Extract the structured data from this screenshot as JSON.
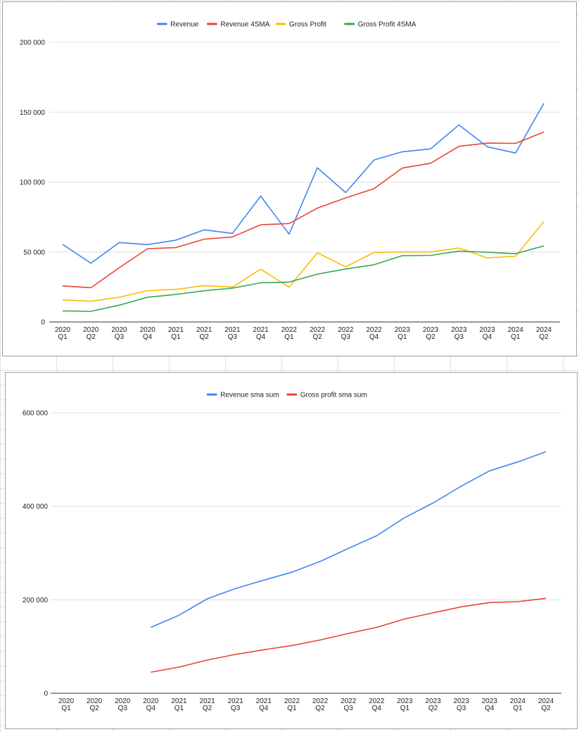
{
  "chart_data": [
    {
      "type": "line",
      "title": "",
      "xlabel": "",
      "ylabel": "",
      "categories": [
        [
          "2020",
          "Q1"
        ],
        [
          "2020",
          "Q2"
        ],
        [
          "2020",
          "Q3"
        ],
        [
          "2020",
          "Q4"
        ],
        [
          "2021",
          "Q1"
        ],
        [
          "2021",
          "Q2"
        ],
        [
          "2021",
          "Q3"
        ],
        [
          "2021",
          "Q4"
        ],
        [
          "2022",
          "Q1"
        ],
        [
          "2022",
          "Q2"
        ],
        [
          "2022",
          "Q3"
        ],
        [
          "2022",
          "Q4"
        ],
        [
          "2023",
          "Q1"
        ],
        [
          "2023",
          "Q2"
        ],
        [
          "2023",
          "Q3"
        ],
        [
          "2023",
          "Q4"
        ],
        [
          "2024",
          "Q1"
        ],
        [
          "2024",
          "Q2"
        ]
      ],
      "ylim": [
        0,
        200000
      ],
      "yticks": [
        0,
        50000,
        100000,
        150000,
        200000
      ],
      "ytick_labels": [
        "0",
        "50 000",
        "100 000",
        "150 000",
        "200 000"
      ],
      "grid": true,
      "legend": "top-center",
      "series": [
        {
          "name": "Revenue",
          "color": "#4285f4",
          "values": [
            55500,
            42000,
            56800,
            55300,
            58500,
            65900,
            63300,
            90000,
            62800,
            110300,
            92500,
            115800,
            121700,
            123800,
            140900,
            125300,
            120800,
            156300
          ]
        },
        {
          "name": "Revenue 4SMA",
          "color": "#ea4335",
          "values": [
            25800,
            24500,
            38800,
            52400,
            53200,
            59200,
            60800,
            69500,
            70400,
            81400,
            88700,
            95300,
            110000,
            113500,
            125600,
            127900,
            127700,
            135800
          ]
        },
        {
          "name": "Gross Profit",
          "color": "#fbbc04",
          "values": [
            15800,
            14800,
            17700,
            22300,
            23300,
            26000,
            24900,
            37800,
            24900,
            49400,
            39400,
            49700,
            50200,
            50100,
            52900,
            45800,
            47000,
            71800
          ]
        },
        {
          "name": "Gross Profit 4SMA",
          "color": "#34a853",
          "values": [
            7900,
            7600,
            12000,
            17700,
            19700,
            22300,
            24200,
            28000,
            28500,
            34200,
            37900,
            40900,
            47400,
            47600,
            50700,
            49800,
            48800,
            54400
          ]
        }
      ]
    },
    {
      "type": "line",
      "title": "",
      "xlabel": "",
      "ylabel": "",
      "categories": [
        [
          "2020",
          "Q1"
        ],
        [
          "2020",
          "Q2"
        ],
        [
          "2020",
          "Q3"
        ],
        [
          "2020",
          "Q4"
        ],
        [
          "2021",
          "Q1"
        ],
        [
          "2021",
          "Q2"
        ],
        [
          "2021",
          "Q3"
        ],
        [
          "2021",
          "Q4"
        ],
        [
          "2022",
          "Q1"
        ],
        [
          "2022",
          "Q2"
        ],
        [
          "2022",
          "Q3"
        ],
        [
          "2022",
          "Q4"
        ],
        [
          "2023",
          "Q1"
        ],
        [
          "2023",
          "Q2"
        ],
        [
          "2023",
          "Q3"
        ],
        [
          "2023",
          "Q4"
        ],
        [
          "2024",
          "Q1"
        ],
        [
          "2024",
          "Q2"
        ]
      ],
      "ylim": [
        0,
        600000
      ],
      "yticks": [
        0,
        200000,
        400000,
        600000
      ],
      "ytick_labels": [
        "0",
        "200 000",
        "400 000",
        "600 000"
      ],
      "grid": true,
      "legend": "top-center",
      "series": [
        {
          "name": "Revenue sma sum",
          "color": "#4285f4",
          "values": [
            null,
            null,
            null,
            141000,
            167000,
            202000,
            224000,
            242000,
            259000,
            282000,
            310000,
            337000,
            376000,
            407000,
            443000,
            476000,
            495000,
            517000
          ]
        },
        {
          "name": "Gross profit sma sum",
          "color": "#ea4335",
          "values": [
            null,
            null,
            null,
            45000,
            56000,
            71000,
            83000,
            93000,
            102000,
            114000,
            128000,
            141000,
            159000,
            172000,
            185000,
            194000,
            196000,
            203000
          ]
        }
      ]
    }
  ]
}
